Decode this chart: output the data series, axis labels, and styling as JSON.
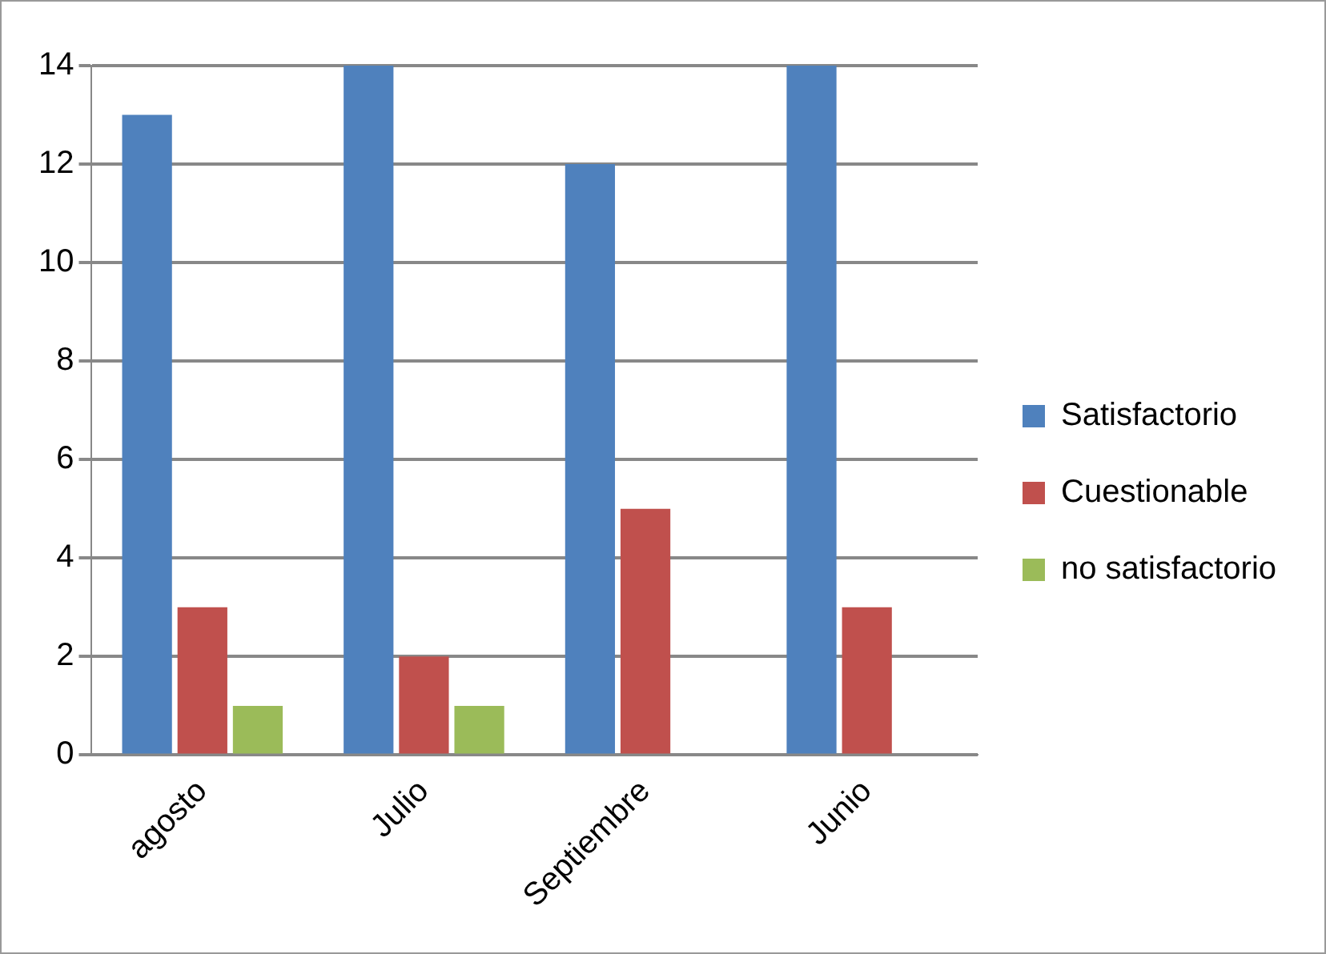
{
  "chart_data": {
    "type": "bar",
    "categories": [
      "agosto",
      "Julio",
      "Septiembre",
      "Junio"
    ],
    "series": [
      {
        "name": "Satisfactorio",
        "color": "#4f81bd",
        "values": [
          13,
          14,
          12,
          14
        ]
      },
      {
        "name": "Cuestionable",
        "color": "#c0504d",
        "values": [
          3,
          2,
          5,
          3
        ]
      },
      {
        "name": "no satisfactorio",
        "color": "#9bbb59",
        "values": [
          1,
          1,
          null,
          null
        ]
      }
    ],
    "ylim": [
      0,
      14
    ],
    "yticks": [
      0,
      2,
      4,
      6,
      8,
      10,
      12,
      14
    ],
    "grid": "y",
    "legend": "right"
  }
}
